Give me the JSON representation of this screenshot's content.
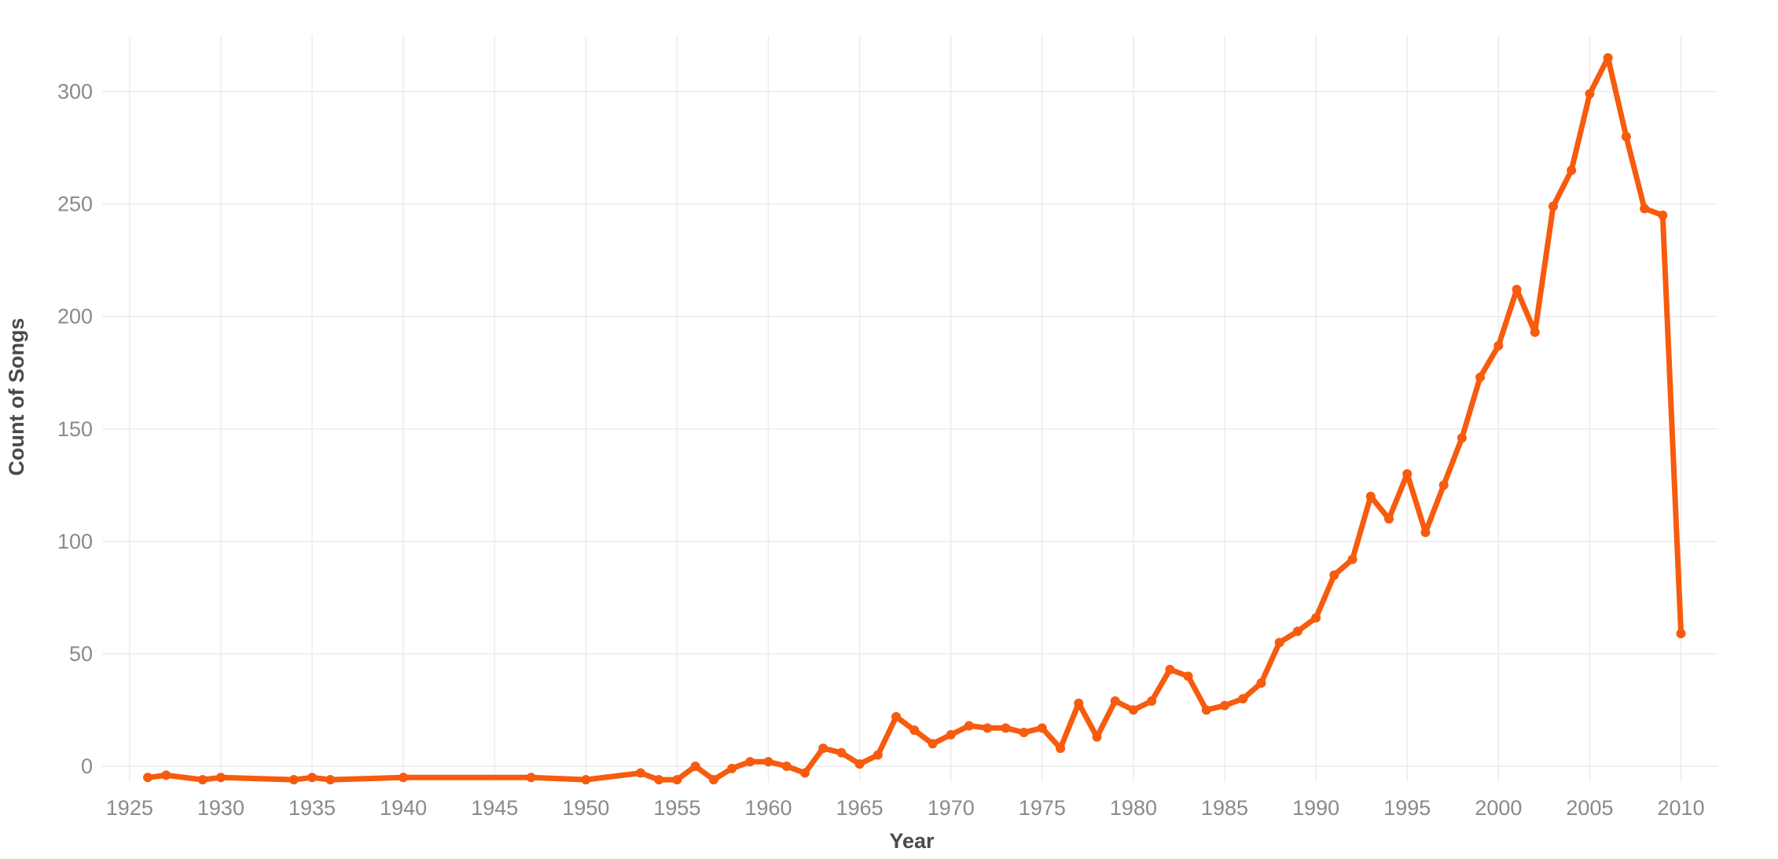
{
  "chart_data": {
    "type": "line",
    "title": "",
    "xlabel": "Year",
    "ylabel": "Count of Songs",
    "xlim": [
      1923.5,
      2012
    ],
    "ylim": [
      -7,
      325
    ],
    "x_ticks": [
      1925,
      1930,
      1935,
      1940,
      1945,
      1950,
      1955,
      1960,
      1965,
      1970,
      1975,
      1980,
      1985,
      1990,
      1995,
      2000,
      2005,
      2010
    ],
    "y_ticks": [
      0,
      50,
      100,
      150,
      200,
      250,
      300
    ],
    "grid": true,
    "legend": "none",
    "series_color": "#f75b0e",
    "series": [
      {
        "x": [
          1926,
          1927,
          1929,
          1930,
          1934,
          1935,
          1936,
          1940,
          1947,
          1950,
          1953,
          1954,
          1955,
          1956,
          1957,
          1958,
          1959,
          1960,
          1961,
          1962,
          1963,
          1964,
          1965,
          1966,
          1967,
          1968,
          1969,
          1970,
          1971,
          1972,
          1973,
          1974,
          1975,
          1976,
          1977,
          1978,
          1979,
          1980,
          1981,
          1982,
          1983,
          1984,
          1985,
          1986,
          1987,
          1988,
          1989,
          1990,
          1991,
          1992,
          1993,
          1994,
          1995,
          1996,
          1997,
          1998,
          1999,
          2000,
          2001,
          2002,
          2003,
          2004,
          2005,
          2006,
          2007,
          2008,
          2009,
          2010
        ],
        "y": [
          -5,
          -4,
          -6,
          -5,
          -6,
          -5,
          -6,
          -5,
          -5,
          -6,
          -3,
          -6,
          -6,
          0,
          -6,
          -1,
          2,
          2,
          0,
          -3,
          8,
          6,
          1,
          5,
          22,
          16,
          10,
          14,
          18,
          17,
          17,
          15,
          17,
          8,
          28,
          13,
          29,
          25,
          29,
          43,
          40,
          25,
          27,
          30,
          37,
          55,
          60,
          66,
          85,
          92,
          120,
          110,
          130,
          104,
          125,
          146,
          173,
          187,
          212,
          193,
          249,
          265,
          299,
          315,
          280,
          248,
          245,
          59
        ]
      }
    ]
  }
}
